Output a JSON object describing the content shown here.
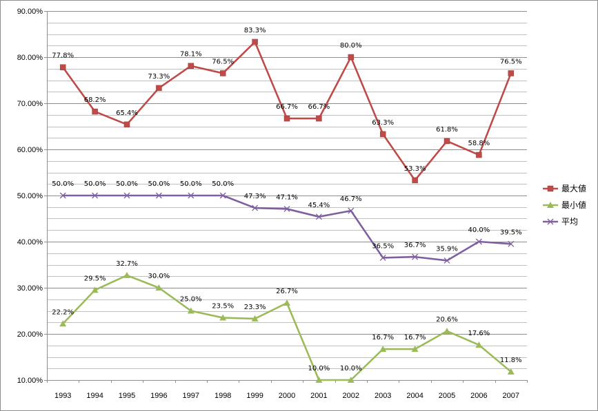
{
  "chart_data": {
    "type": "line",
    "title": "",
    "xlabel": "",
    "ylabel": "",
    "ylim": [
      0.1,
      0.9
    ],
    "y_ticks": [
      0.1,
      0.2,
      0.3,
      0.4,
      0.5,
      0.6,
      0.7,
      0.8,
      0.9
    ],
    "y_tick_labels": [
      "10.00%",
      "20.00%",
      "30.00%",
      "40.00%",
      "50.00%",
      "60.00%",
      "70.00%",
      "80.00%",
      "90.00%"
    ],
    "grid": true,
    "legend_position": "right",
    "categories": [
      "1993",
      "1994",
      "1995",
      "1996",
      "1997",
      "1998",
      "1999",
      "2000",
      "2001",
      "2002",
      "2003",
      "2004",
      "2005",
      "2006",
      "2007"
    ],
    "series": [
      {
        "name": "最大値",
        "color": "#be4b48",
        "marker": "square",
        "values": [
          0.778,
          0.682,
          0.654,
          0.733,
          0.781,
          0.765,
          0.833,
          0.667,
          0.667,
          0.8,
          0.633,
          0.533,
          0.618,
          0.588,
          0.765
        ],
        "labels": [
          "77.8%",
          "68.2%",
          "65.4%",
          "73.3%",
          "78.1%",
          "76.5%",
          "83.3%",
          "66.7%",
          "66.7%",
          "80.0%",
          "63.3%",
          "53.3%",
          "61.8%",
          "58.8%",
          "76.5%"
        ]
      },
      {
        "name": "最小値",
        "color": "#9bbb59",
        "marker": "triangle",
        "values": [
          0.222,
          0.295,
          0.327,
          0.3,
          0.25,
          0.235,
          0.233,
          0.267,
          0.1,
          0.1,
          0.167,
          0.167,
          0.206,
          0.176,
          0.118
        ],
        "labels": [
          "22.2%",
          "29.5%",
          "32.7%",
          "30.0%",
          "25.0%",
          "23.5%",
          "23.3%",
          "26.7%",
          "10.0%",
          "10.0%",
          "16.7%",
          "16.7%",
          "20.6%",
          "17.6%",
          "11.8%"
        ]
      },
      {
        "name": "平均",
        "color": "#7f5fa0",
        "marker": "x",
        "values": [
          0.5,
          0.5,
          0.5,
          0.5,
          0.5,
          0.5,
          0.473,
          0.471,
          0.454,
          0.467,
          0.365,
          0.367,
          0.359,
          0.4,
          0.395
        ],
        "labels": [
          "50.0%",
          "50.0%",
          "50.0%",
          "50.0%",
          "50.0%",
          "50.0%",
          "47.3%",
          "47.1%",
          "45.4%",
          "46.7%",
          "36.5%",
          "36.7%",
          "35.9%",
          "40.0%",
          "39.5%"
        ]
      }
    ]
  }
}
